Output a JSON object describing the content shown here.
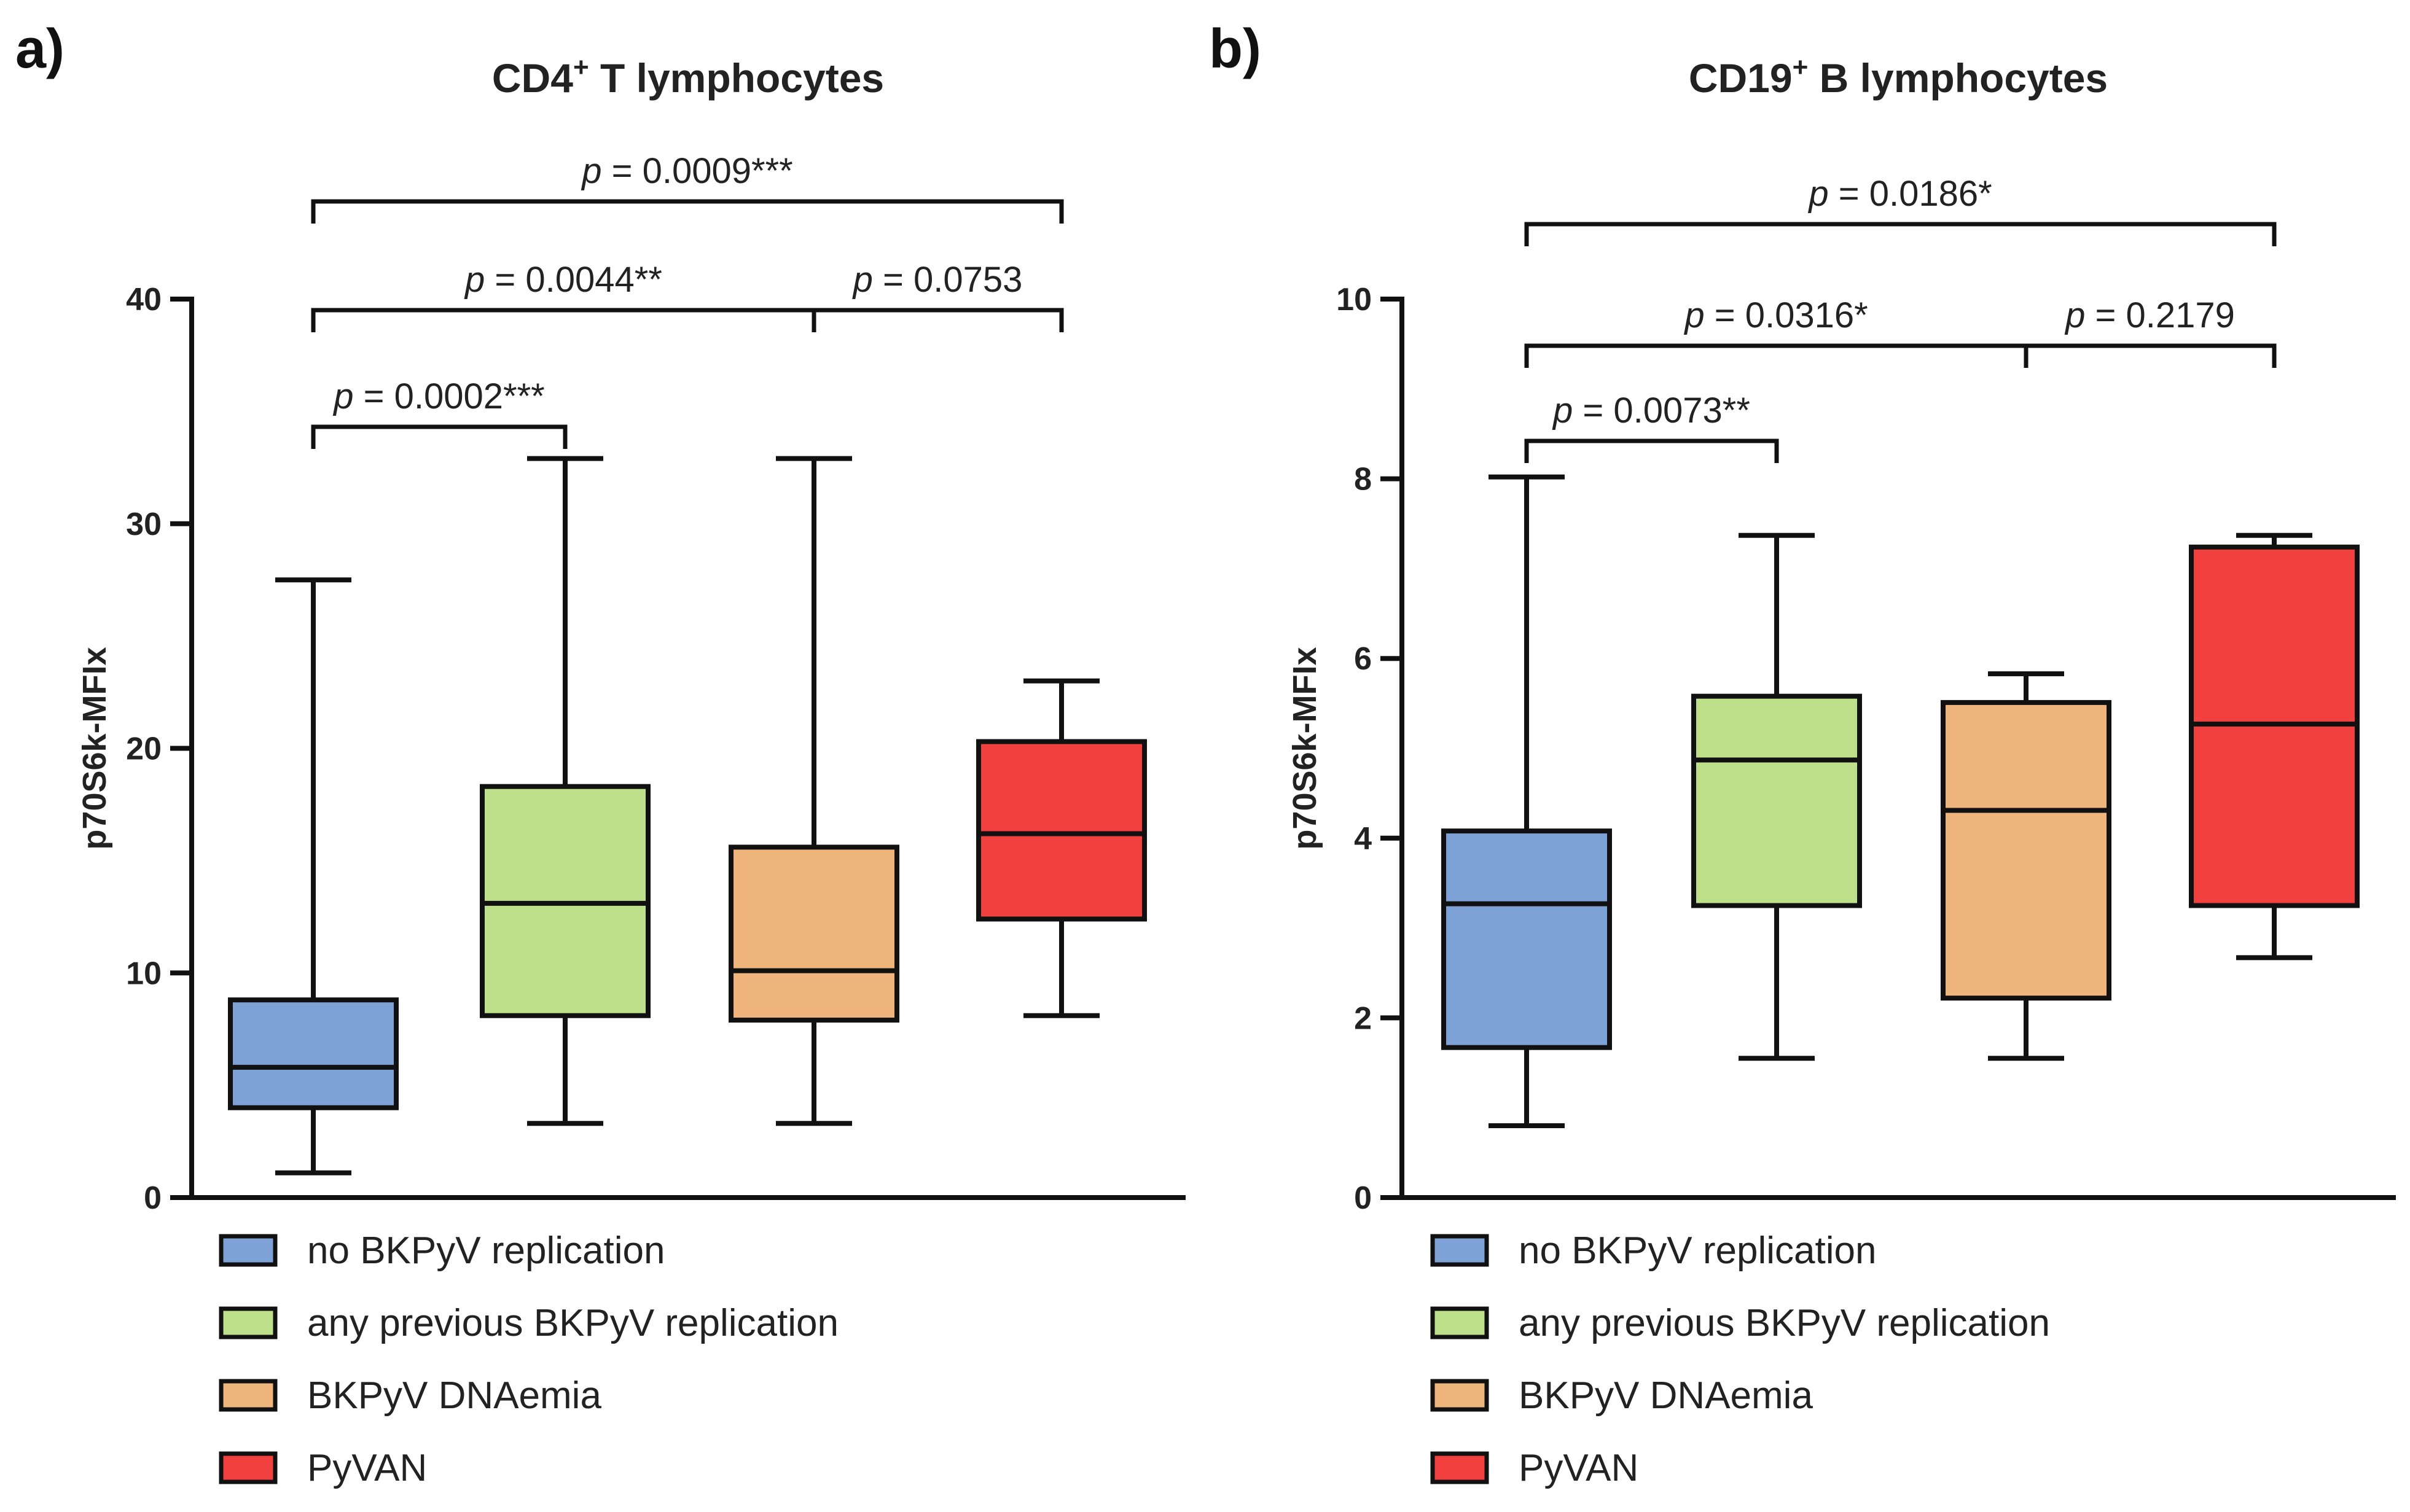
{
  "chart_data": [
    {
      "panel": "a)",
      "type": "boxplot",
      "title_main": "CD4",
      "title_sup": "+",
      "title_rest": " T lymphocytes",
      "ylabel": "p70S6k-MFIx",
      "ylim": [
        0,
        40
      ],
      "yticks": [
        0,
        10,
        20,
        30,
        40
      ],
      "groups": [
        {
          "name": "no BKPyV replication",
          "color": "#7ea2d6",
          "min": 1.1,
          "q1": 4.0,
          "median": 5.8,
          "q3": 8.8,
          "max": 27.5
        },
        {
          "name": "any previous BKPyV replication",
          "color": "#bfe08a",
          "min": 3.3,
          "q1": 8.1,
          "median": 13.1,
          "q3": 18.3,
          "max": 32.9
        },
        {
          "name": "BKPyV DNAemia",
          "color": "#f0b57c",
          "min": 3.3,
          "q1": 7.9,
          "median": 10.1,
          "q3": 15.6,
          "max": 32.9
        },
        {
          "name": "PyVAN",
          "color": "#f2403f",
          "min": 8.1,
          "q1": 12.4,
          "median": 16.2,
          "q3": 20.3,
          "max": 23.0
        }
      ],
      "comparisons": [
        {
          "from": 0,
          "to": 1,
          "p": "p",
          "label": " = 0.0002***",
          "level": 0
        },
        {
          "from": 0,
          "to": 2,
          "p": "p",
          "label": " = 0.0044**",
          "level": 1
        },
        {
          "from": 2,
          "to": 3,
          "p": "p",
          "label": " = 0.0753",
          "level": 1
        },
        {
          "from": 0,
          "to": 3,
          "p": "p",
          "label": " = 0.0009***",
          "level": 2
        }
      ]
    },
    {
      "panel": "b)",
      "type": "boxplot",
      "title_main": "CD19",
      "title_sup": "+",
      "title_rest": " B lymphocytes",
      "ylabel": "p70S6k-MFIx",
      "ylim": [
        0,
        10
      ],
      "yticks": [
        0,
        2,
        4,
        6,
        8,
        10
      ],
      "groups": [
        {
          "name": "no BKPyV replication",
          "color": "#7ea2d6",
          "min": 0.8,
          "q1": 1.67,
          "median": 3.27,
          "q3": 4.08,
          "max": 8.02
        },
        {
          "name": "any previous BKPyV replication",
          "color": "#bfe08a",
          "min": 1.55,
          "q1": 3.25,
          "median": 4.87,
          "q3": 5.58,
          "max": 7.37
        },
        {
          "name": "BKPyV DNAemia",
          "color": "#f0b57c",
          "min": 1.55,
          "q1": 2.22,
          "median": 4.31,
          "q3": 5.51,
          "max": 5.83
        },
        {
          "name": "PyVAN",
          "color": "#f2403f",
          "min": 2.67,
          "q1": 3.25,
          "median": 5.27,
          "q3": 7.24,
          "max": 7.37
        }
      ],
      "comparisons": [
        {
          "from": 0,
          "to": 1,
          "p": "p",
          "label": " = 0.0073**",
          "level": 0
        },
        {
          "from": 0,
          "to": 2,
          "p": "p",
          "label": " = 0.0316*",
          "level": 1
        },
        {
          "from": 2,
          "to": 3,
          "p": "p",
          "label": " = 0.2179",
          "level": 1
        },
        {
          "from": 0,
          "to": 3,
          "p": "p",
          "label": " = 0.0186*",
          "level": 2
        }
      ]
    }
  ]
}
